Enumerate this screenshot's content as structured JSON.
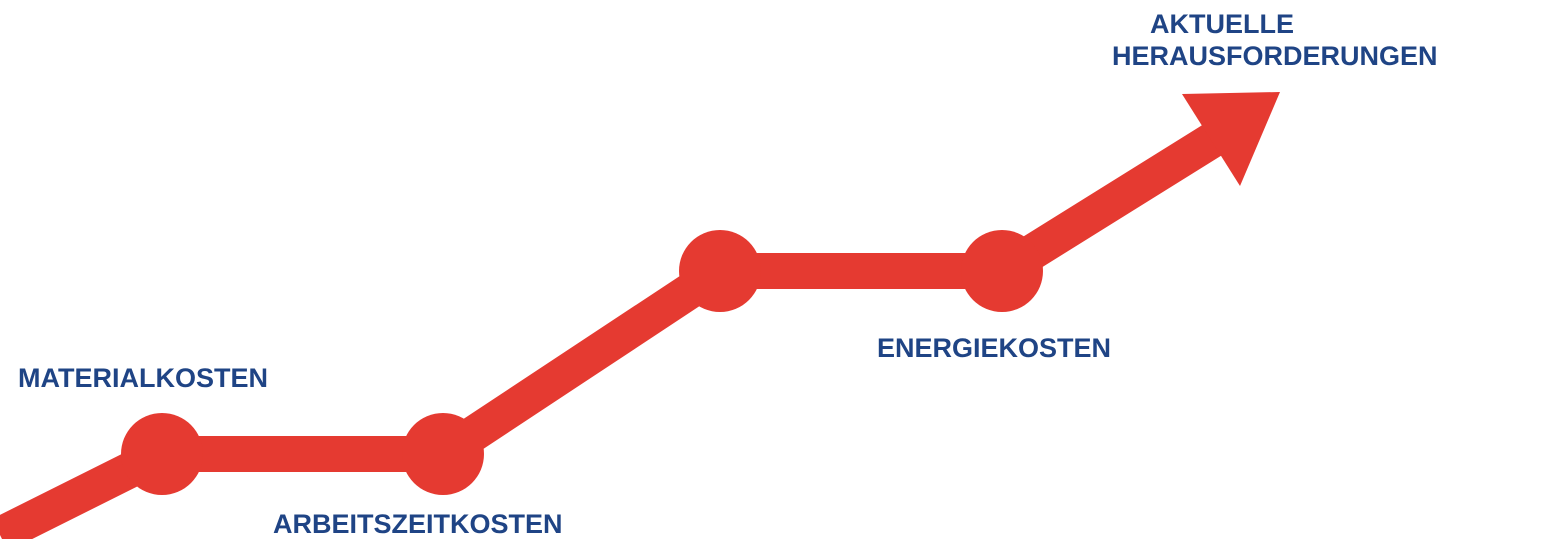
{
  "colors": {
    "path": "#e53a31",
    "label": "#1f4485",
    "background": "#ffffff"
  },
  "milestones": [
    {
      "label": "MATERIALKOSTEN"
    },
    {
      "label": "ARBEITSZEITKOSTEN"
    },
    {
      "label": ""
    },
    {
      "label": "ENERGIEKOSTEN"
    }
  ],
  "goal": {
    "line1": "AKTUELLE",
    "line2": "HERAUSFORDERUNGEN"
  }
}
